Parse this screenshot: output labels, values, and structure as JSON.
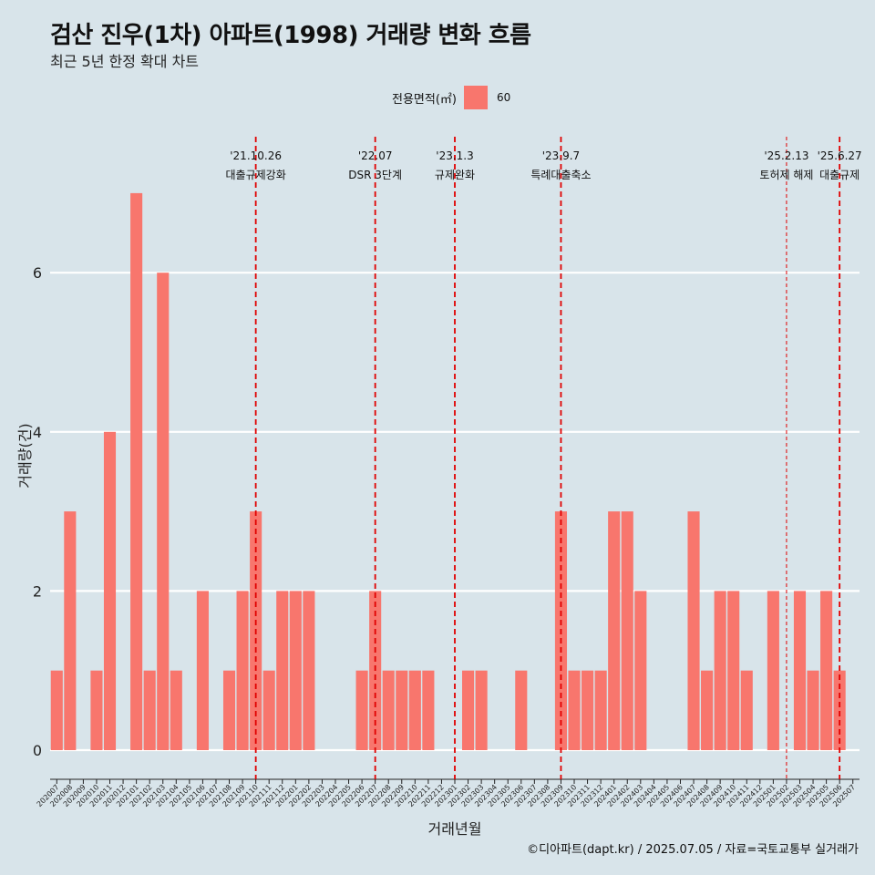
{
  "title": "검산 진우(1차) 아파트(1998) 거래량 변화 흐름",
  "subtitle": "최근 5년 한정 확대 차트",
  "caption": "©디아파트(dapt.kr) / 2025.07.05 / 자료=국토교통부 실거래가",
  "legend": {
    "title": "전용면적(㎡)",
    "items": [
      {
        "label": "60",
        "color": "#f8766d"
      }
    ]
  },
  "colors": {
    "background": "#d8e4ea",
    "bar": "#f8766d",
    "event_line": "#e00000",
    "grid": "#ffffff"
  },
  "chart_data": {
    "type": "bar",
    "xlabel": "거래년월",
    "ylabel": "거래량(건)",
    "ylim": [
      0,
      7
    ],
    "yticks": [
      0,
      2,
      4,
      6
    ],
    "grid": true,
    "legend_position": "top",
    "categories": [
      "202007",
      "202008",
      "202009",
      "202010",
      "202011",
      "202012",
      "202101",
      "202102",
      "202103",
      "202104",
      "202105",
      "202106",
      "202107",
      "202108",
      "202109",
      "202110",
      "202111",
      "202112",
      "202201",
      "202202",
      "202203",
      "202204",
      "202205",
      "202206",
      "202207",
      "202208",
      "202209",
      "202210",
      "202211",
      "202212",
      "202301",
      "202302",
      "202303",
      "202304",
      "202305",
      "202306",
      "202307",
      "202308",
      "202309",
      "202310",
      "202311",
      "202312",
      "202401",
      "202402",
      "202403",
      "202404",
      "202405",
      "202406",
      "202407",
      "202408",
      "202409",
      "202410",
      "202411",
      "202412",
      "202501",
      "202502",
      "202503",
      "202504",
      "202505",
      "202506",
      "202507"
    ],
    "series": [
      {
        "name": "60",
        "values": [
          1,
          3,
          0,
          1,
          4,
          0,
          7,
          1,
          6,
          1,
          0,
          2,
          0,
          1,
          2,
          3,
          1,
          2,
          2,
          2,
          0,
          0,
          0,
          1,
          2,
          1,
          1,
          1,
          1,
          0,
          0,
          1,
          1,
          0,
          0,
          1,
          0,
          0,
          3,
          1,
          1,
          1,
          3,
          3,
          2,
          0,
          0,
          0,
          3,
          1,
          2,
          2,
          1,
          0,
          2,
          0,
          2,
          1,
          2,
          1,
          0
        ]
      }
    ],
    "events": [
      {
        "date": "'21.10.26",
        "label": "대출규제강화",
        "x": "202110",
        "style": "dashed"
      },
      {
        "date": "'22.07",
        "label": "DSR 3단계",
        "x": "202207",
        "style": "dashed"
      },
      {
        "date": "'23.1.3",
        "label": "규제완화",
        "x": "202301",
        "style": "dashed"
      },
      {
        "date": "'23.9.7",
        "label": "특례대출축소",
        "x": "202309",
        "style": "dashed"
      },
      {
        "date": "'25.2.13",
        "label": "토허제 해제",
        "x": "202502",
        "style": "thin"
      },
      {
        "date": "'25.6.27",
        "label": "대출규제",
        "x": "202506",
        "style": "dashed"
      }
    ]
  }
}
